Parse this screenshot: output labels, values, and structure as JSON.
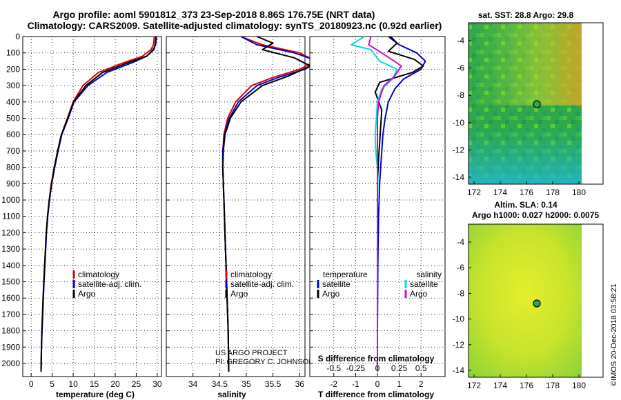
{
  "header": {
    "title_line1": "Argo profile: aoml 5901812_373 23-Sep-2018 8.86S 176.75E (NRT data)",
    "title_line2": "Climatology: CARS2009. Satellite-adjusted climatology: synTS_20180923.nc (0.92d earlier)"
  },
  "colors": {
    "climatology": "#dd0000",
    "satellite": "#0000cc",
    "argo": "#000000",
    "salinity_satellite": "#00dddd",
    "salinity_argo": "#dd00dd"
  },
  "legend_temp_panel": [
    "climatology",
    "satellite-adj. clim.",
    "Argo"
  ],
  "legend_sal_panel": [
    "climatology",
    "satellite-adj. clim.",
    "Argo"
  ],
  "legend_diff_panel": {
    "temperature_head": "temperature",
    "salinity_head": "salinity",
    "left": [
      "satellite",
      "Argo"
    ],
    "right": [
      "satellite",
      "Argo"
    ]
  },
  "project_credit": {
    "line1": "US ARGO PROJECT",
    "line2": "PI: GREGORY C. JOHNSON"
  },
  "map_sst": {
    "title": "sat. SST: 28.8 Argo: 29.8",
    "x_ticks": [
      "172",
      "174",
      "176",
      "178",
      "180"
    ],
    "y_ticks": [
      "-4",
      "-6",
      "-8",
      "-10",
      "-12",
      "-14"
    ]
  },
  "map_sla": {
    "title_line1": "Altim. SLA: 0.14",
    "title_line2": "Argo h1000: 0.027 h2000: 0.0075",
    "x_ticks": [
      "172",
      "174",
      "176",
      "178",
      "180"
    ],
    "y_ticks": [
      "-4",
      "-6",
      "-8",
      "-10",
      "-12",
      "-14"
    ]
  },
  "stamp": "©IMOS 20-Dec-2018 03:58:21",
  "chart_data": [
    {
      "type": "line",
      "xlabel": "temperature (deg C)",
      "ylabel": "",
      "xlim": [
        -2,
        31
      ],
      "ylim": [
        2080,
        0
      ],
      "x_ticks": [
        0,
        5,
        10,
        15,
        20,
        25,
        30
      ],
      "y_ticks": [
        0,
        100,
        200,
        300,
        400,
        500,
        600,
        700,
        800,
        900,
        1000,
        1100,
        1200,
        1300,
        1400,
        1500,
        1600,
        1700,
        1800,
        1900,
        2000
      ],
      "series": [
        {
          "name": "climatology",
          "color": "#dd0000",
          "x": [
            29.3,
            29.1,
            28.5,
            26.5,
            22,
            16,
            12.3,
            10,
            8.6,
            7.2,
            6.3,
            5.5,
            4.8,
            4.3,
            3.9,
            3.6,
            3.4,
            3.2,
            3,
            2.85,
            2.7,
            2.55,
            2.45,
            2.35
          ],
          "y": [
            0,
            50,
            80,
            120,
            160,
            220,
            300,
            400,
            500,
            600,
            700,
            800,
            900,
            1000,
            1100,
            1200,
            1300,
            1400,
            1500,
            1600,
            1700,
            1800,
            1900,
            2050
          ]
        },
        {
          "name": "satellite-adj. clim.",
          "color": "#0000cc",
          "x": [
            29.8,
            29.6,
            29,
            27.5,
            24,
            18,
            13.5,
            10.2,
            8.8,
            7.3,
            6.4,
            5.6,
            4.9,
            4.35,
            3.95,
            3.65,
            3.45,
            3.25,
            3.05,
            2.9,
            2.75,
            2.6,
            2.45,
            2.35
          ],
          "y": [
            0,
            50,
            80,
            120,
            160,
            220,
            300,
            400,
            500,
            600,
            700,
            800,
            900,
            1000,
            1100,
            1200,
            1300,
            1400,
            1500,
            1600,
            1700,
            1800,
            1900,
            2050
          ]
        },
        {
          "name": "Argo",
          "color": "#000000",
          "x": [
            29.7,
            29.5,
            29.2,
            27.5,
            23,
            17,
            13,
            10.1,
            8.7,
            7.2,
            6.3,
            5.5,
            4.85,
            4.3,
            3.9,
            3.6,
            3.4,
            3.2,
            3,
            2.85,
            2.7,
            2.55,
            2.45,
            2.35
          ],
          "y": [
            0,
            50,
            80,
            120,
            160,
            220,
            300,
            400,
            500,
            600,
            700,
            800,
            900,
            1000,
            1100,
            1200,
            1300,
            1400,
            1500,
            1600,
            1700,
            1800,
            1900,
            2050
          ]
        }
      ]
    },
    {
      "type": "line",
      "xlabel": "salinity",
      "ylabel": "",
      "xlim": [
        33.5,
        36.1
      ],
      "ylim": [
        2080,
        0
      ],
      "x_ticks": [
        34,
        34.5,
        35,
        35.5,
        36
      ],
      "x_tick_labels": [
        "34",
        "34.5",
        "35",
        "35.5",
        "36"
      ],
      "series": [
        {
          "name": "climatology",
          "color": "#dd0000",
          "x": [
            34.9,
            35.3,
            36,
            36.3,
            36,
            35.5,
            35.1,
            34.8,
            34.65,
            34.58,
            34.56,
            34.56,
            34.57,
            34.58,
            34.59,
            34.6,
            34.61,
            34.62,
            34.63,
            34.64,
            34.65,
            34.66,
            34.67
          ],
          "y": [
            0,
            50,
            100,
            150,
            200,
            250,
            300,
            400,
            500,
            600,
            700,
            800,
            900,
            1000,
            1100,
            1200,
            1300,
            1400,
            1500,
            1600,
            1700,
            1800,
            2050
          ]
        },
        {
          "name": "satellite-adj. clim.",
          "color": "#0000cc",
          "x": [
            34.9,
            35.2,
            35.9,
            36.35,
            36.1,
            35.6,
            35.2,
            34.85,
            34.68,
            34.59,
            34.56,
            34.56,
            34.57,
            34.58,
            34.59,
            34.6,
            34.61,
            34.62,
            34.63,
            34.64,
            34.65,
            34.66,
            34.67
          ],
          "y": [
            0,
            50,
            100,
            150,
            200,
            250,
            300,
            400,
            500,
            600,
            700,
            800,
            900,
            1000,
            1100,
            1200,
            1300,
            1400,
            1500,
            1600,
            1700,
            1800,
            2050
          ]
        },
        {
          "name": "Argo",
          "color": "#000000",
          "x": [
            35.2,
            35.5,
            35.3,
            35.9,
            36.2,
            35.8,
            35.3,
            34.9,
            34.7,
            34.6,
            34.57,
            34.56,
            34.57,
            34.58,
            34.59,
            34.6,
            34.61,
            34.62,
            34.63,
            34.64,
            34.65,
            34.66,
            34.67
          ],
          "y": [
            0,
            40,
            80,
            130,
            180,
            240,
            300,
            400,
            500,
            600,
            700,
            800,
            900,
            1000,
            1100,
            1200,
            1300,
            1400,
            1500,
            1600,
            1700,
            1800,
            2050
          ]
        }
      ]
    },
    {
      "type": "line",
      "xlabel": "T difference from climatology",
      "xlabel_top": "S difference from climatology",
      "xlim": [
        -3.1,
        3.1
      ],
      "ylim": [
        2080,
        0
      ],
      "x_ticks": [
        -2,
        -1,
        0,
        1,
        2
      ],
      "x_tick_labels": [
        "-2",
        "-1",
        "0",
        "1",
        "2"
      ],
      "x_ticks_top": [
        -0.5,
        -0.25,
        0,
        0.25,
        0.5
      ],
      "x_tick_labels_top": [
        "-0.5",
        "-0.25",
        "0",
        "0.25",
        "0.5"
      ],
      "series": [
        {
          "name": "temperature satellite",
          "color": "#0000cc",
          "x": [
            0.5,
            1,
            1.8,
            2.2,
            2.0,
            1.2,
            0.8,
            0.5,
            0.35,
            0.25,
            0.2,
            0.15,
            0.1,
            0.08,
            0.05,
            0.04,
            0.03,
            0.02,
            0.01,
            0,
            0
          ],
          "y": [
            0,
            50,
            100,
            150,
            200,
            260,
            320,
            400,
            500,
            600,
            700,
            800,
            900,
            1000,
            1100,
            1200,
            1300,
            1400,
            1600,
            1800,
            2050
          ]
        },
        {
          "name": "temperature Argo",
          "color": "#000000",
          "x": [
            0.6,
            0.9,
            0.5,
            1.7,
            2.1,
            1.6,
            0.1,
            -0.1,
            0.2,
            0.15,
            0.1,
            0.05,
            0.02,
            0,
            0,
            0,
            0,
            0,
            0,
            0,
            0
          ],
          "y": [
            0,
            40,
            90,
            140,
            180,
            220,
            280,
            340,
            450,
            550,
            650,
            750,
            850,
            950,
            1050,
            1200,
            1300,
            1400,
            1600,
            1800,
            2050
          ]
        },
        {
          "name": "salinity satellite",
          "color": "#00dddd",
          "x": [
            -0.6,
            -1.2,
            -0.3,
            0.1,
            0.9,
            0.7,
            0.2,
            0,
            -0.05,
            -0.1,
            -0.08,
            0,
            0.02,
            0,
            0,
            0,
            0
          ],
          "y": [
            0,
            50,
            80,
            150,
            200,
            260,
            320,
            400,
            500,
            600,
            700,
            800,
            900,
            1000,
            1300,
            1600,
            2050
          ]
        },
        {
          "name": "salinity Argo",
          "color": "#dd00dd",
          "x": [
            -0.3,
            -0.4,
            0.2,
            1.1,
            0.8,
            0.3,
            0.05,
            0,
            0,
            0,
            0,
            0,
            0,
            0
          ],
          "y": [
            0,
            50,
            100,
            180,
            240,
            300,
            400,
            500,
            700,
            900,
            1100,
            1400,
            1800,
            2050
          ]
        }
      ]
    }
  ]
}
